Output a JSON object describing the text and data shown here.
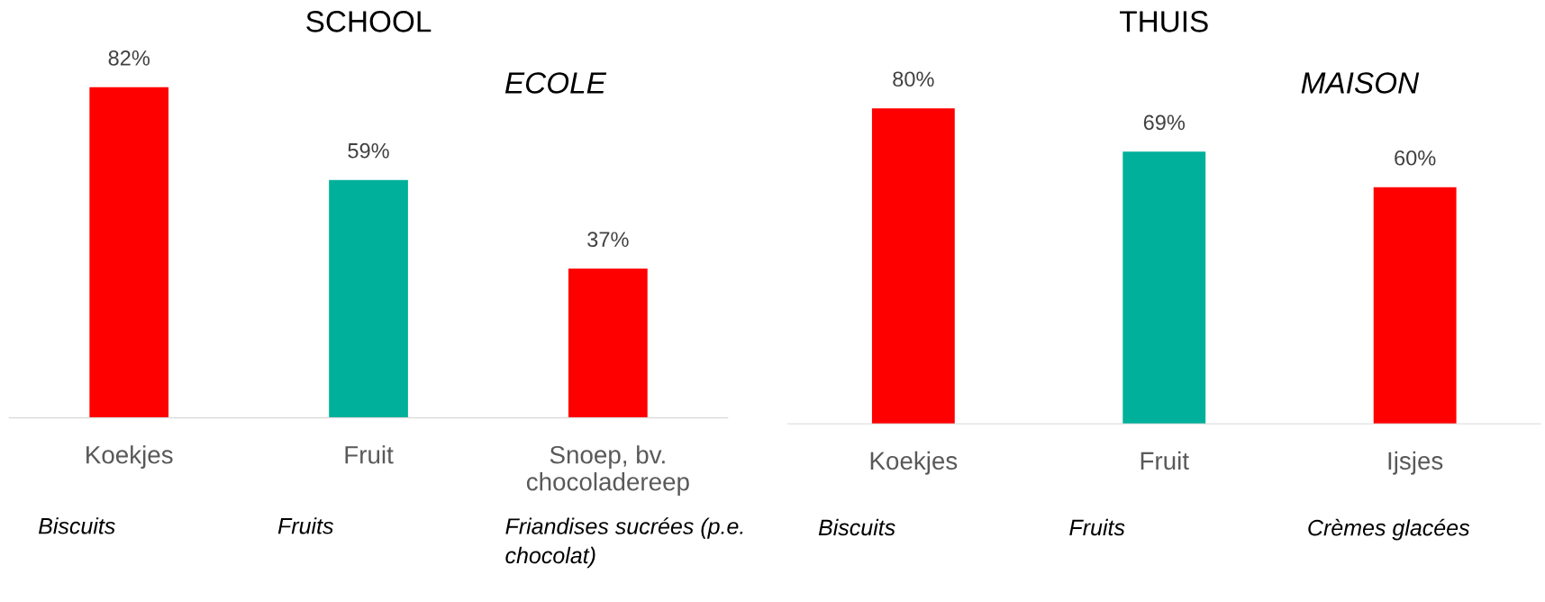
{
  "chart_data": [
    {
      "type": "bar",
      "title": "SCHOOL",
      "subtitle": "ECOLE",
      "categories": [
        "Koekjes",
        "Fruit",
        "Snoep, bv.\nchocoladereep"
      ],
      "values": [
        82,
        59,
        37
      ],
      "colors": [
        "#ff0000",
        "#00b09b",
        "#ff0000"
      ],
      "value_labels": [
        "82%",
        "59%",
        "37%"
      ],
      "annotations": [
        "Biscuits",
        "Fruits",
        "Friandises sucrées (p.e.\nchocolat)"
      ],
      "grid": false,
      "legend": false
    },
    {
      "type": "bar",
      "title": "THUIS",
      "subtitle": "MAISON",
      "categories": [
        "Koekjes",
        "Fruit",
        "Ijsjes"
      ],
      "values": [
        80,
        69,
        60
      ],
      "colors": [
        "#ff0000",
        "#00b09b",
        "#ff0000"
      ],
      "value_labels": [
        "80%",
        "69%",
        "60%"
      ],
      "annotations": [
        "Biscuits",
        "Fruits",
        "Crèmes glacées"
      ],
      "grid": false,
      "legend": false
    }
  ]
}
